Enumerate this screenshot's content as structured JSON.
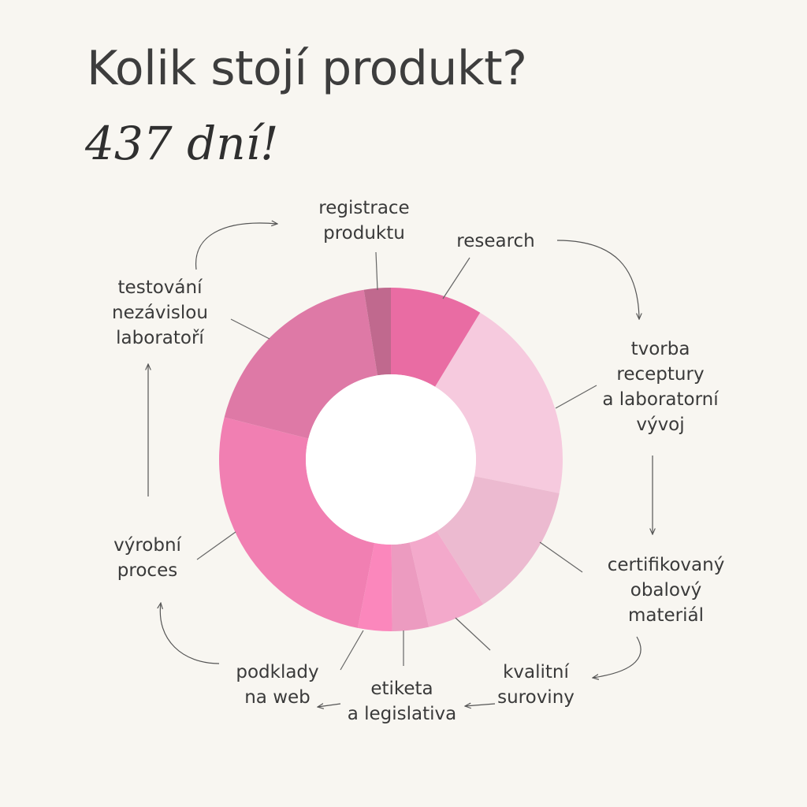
{
  "header": {
    "title": "Kolik stojí produkt?",
    "subtitle": "437 dní!"
  },
  "colors": {
    "background": "#f8f6f1",
    "hole": "#ffffff",
    "arrow": "#555555"
  },
  "chart_data": {
    "type": "pie",
    "variant": "donut",
    "title": "Kolik stojí produkt?",
    "subtitle": "437 dní!",
    "total_days": 437,
    "legend": "none",
    "slices": [
      {
        "label": "research",
        "value": 38,
        "color": "#e96ca3"
      },
      {
        "label": "tvorba\nreceptury\na laboratorní\nvývoj",
        "value": 85,
        "color": "#f6cade"
      },
      {
        "label": "certifikovaný\nobalový\nmateriál",
        "value": 56,
        "color": "#ecbad0"
      },
      {
        "label": "kvalitní\nsuroviny",
        "value": 24,
        "color": "#f3a9cb"
      },
      {
        "label": "etiketa\na legislativa",
        "value": 15,
        "color": "#ec9bc0"
      },
      {
        "label": "podklady\nna web",
        "value": 14,
        "color": "#fb87bc"
      },
      {
        "label": "výrobní\nproces",
        "value": 113,
        "color": "#f17fb2"
      },
      {
        "label": "testování\nnezávislou\nlaboratoří",
        "value": 81,
        "color": "#de79a6"
      },
      {
        "label": "registrace\nproduktu",
        "value": 11,
        "color": "#c0698e"
      }
    ]
  }
}
